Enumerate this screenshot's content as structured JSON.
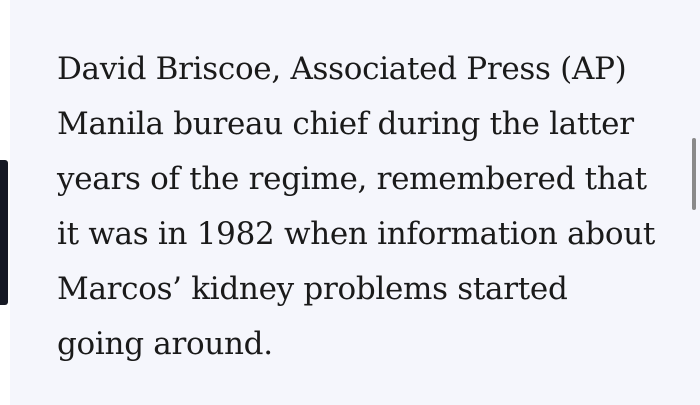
{
  "article": {
    "paragraph_lines": [
      "David Briscoe, Associated Press (AP)",
      "Manila bureau chief during the latter",
      "years of the regime, remembered that",
      "it was in 1982 when information about",
      "Marcos’ kidney problems started",
      "going around."
    ]
  },
  "colors": {
    "card_background": "#f5f6fc",
    "text": "#1a1a1a",
    "accent_bar": "#171a24",
    "scrollbar": "#8a8a8a"
  }
}
